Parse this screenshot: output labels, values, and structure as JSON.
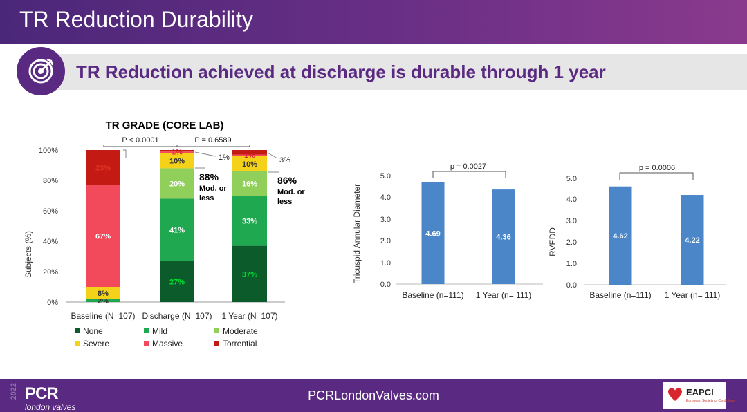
{
  "header": {
    "title": "TR Reduction Durability",
    "headline": "TR Reduction achieved at discharge is durable through 1 year"
  },
  "footer": {
    "url": "PCRLondonValves.com",
    "logo_main": "PCR",
    "logo_sub": "london valves",
    "year": "2022",
    "partner": "EAPCI",
    "partner_sub": "European Society of Cardiology"
  },
  "colors": {
    "none": "#0b5c2a",
    "mild": "#1fa84f",
    "moderate": "#8fcf5a",
    "severe": "#f5d21a",
    "massive": "#f24a5a",
    "torrential": "#c41a14",
    "bar_blue": "#4a86c8",
    "purple": "#5a2a82"
  },
  "chart_data": [
    {
      "type": "bar",
      "stacked": true,
      "title": "TR GRADE (CORE LAB)",
      "ylabel": "Subjects (%)",
      "yticks": [
        "0%",
        "20%",
        "40%",
        "60%",
        "80%",
        "100%"
      ],
      "ylim": [
        0,
        100
      ],
      "categories": [
        "Baseline (N=107)",
        "Discharge (N=107)",
        "1 Year (N=107)"
      ],
      "series": [
        {
          "name": "None",
          "key": "none",
          "values": [
            0,
            27,
            37
          ],
          "labels": [
            "",
            "27%",
            "37%"
          ]
        },
        {
          "name": "Mild",
          "key": "mild",
          "values": [
            2,
            41,
            33
          ],
          "labels": [
            "2%",
            "41%",
            "33%"
          ]
        },
        {
          "name": "Moderate",
          "key": "moderate",
          "values": [
            0,
            20,
            16
          ],
          "labels": [
            "",
            "20%",
            "16%"
          ]
        },
        {
          "name": "Severe",
          "key": "severe",
          "values": [
            8,
            10,
            10
          ],
          "labels": [
            "8%",
            "10%",
            "10%"
          ]
        },
        {
          "name": "Massive",
          "key": "massive",
          "values": [
            67,
            1,
            1
          ],
          "labels": [
            "67%",
            "1%",
            "1%"
          ]
        },
        {
          "name": "Torrential",
          "key": "torrential",
          "values": [
            23,
            1,
            3
          ],
          "labels": [
            "23%",
            "",
            ""
          ]
        }
      ],
      "callouts": [
        {
          "text": "1%"
        },
        {
          "text": "3%"
        }
      ],
      "pvalues": [
        "P < 0.0001",
        "P = 0.6589"
      ],
      "annotations": [
        {
          "pct": "88%",
          "line1": "Mod. or",
          "line2": "less"
        },
        {
          "pct": "86%",
          "line1": "Mod. or",
          "line2": "less"
        }
      ],
      "legend": [
        "None",
        "Mild",
        "Moderate",
        "Severe",
        "Massive",
        "Torrential"
      ]
    },
    {
      "type": "bar",
      "ylabel": "Tricuspid Annular Diameter",
      "categories": [
        "Baseline (n=111)",
        "1 Year (n= 111)"
      ],
      "values": [
        4.69,
        4.36
      ],
      "labels": [
        "4.69",
        "4.36"
      ],
      "ylim": [
        0,
        5
      ],
      "yticks": [
        "0.0",
        "1.0",
        "2.0",
        "3.0",
        "4.0",
        "5.0"
      ],
      "pvalue": "p = 0.0027"
    },
    {
      "type": "bar",
      "ylabel": "RVEDD",
      "categories": [
        "Baseline (n=111)",
        "1 Year (n= 111)"
      ],
      "values": [
        4.62,
        4.22
      ],
      "labels": [
        "4.62",
        "4.22"
      ],
      "ylim": [
        0,
        5
      ],
      "yticks": [
        "0.0",
        "1.0",
        "2.0",
        "3.0",
        "4.0",
        "5.0"
      ],
      "pvalue": "p = 0.0006"
    }
  ]
}
